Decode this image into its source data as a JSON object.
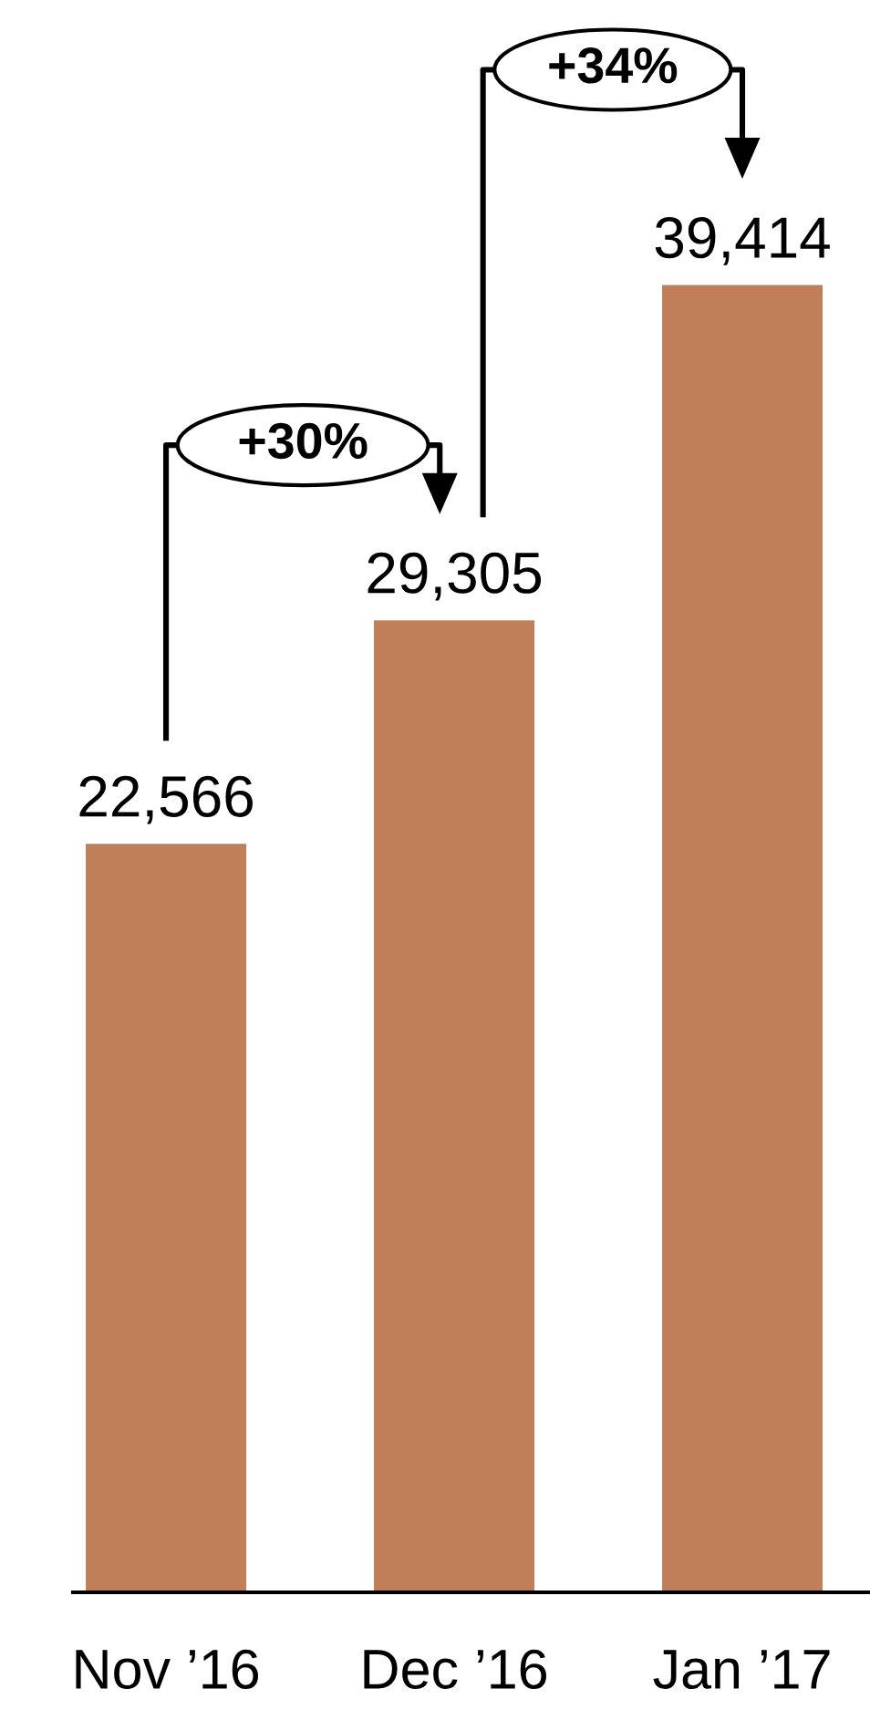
{
  "chart_data": {
    "type": "bar",
    "categories": [
      "Nov ’16",
      "Dec ’16",
      "Jan ’17"
    ],
    "values": [
      22566,
      29305,
      39414
    ],
    "color": "#c07f59",
    "data_labels": true,
    "value_labels": [
      "22,566",
      "29,305",
      "39,414"
    ],
    "annotations": [
      "+30%",
      "+34%"
    ],
    "grid": false,
    "legend": false
  }
}
